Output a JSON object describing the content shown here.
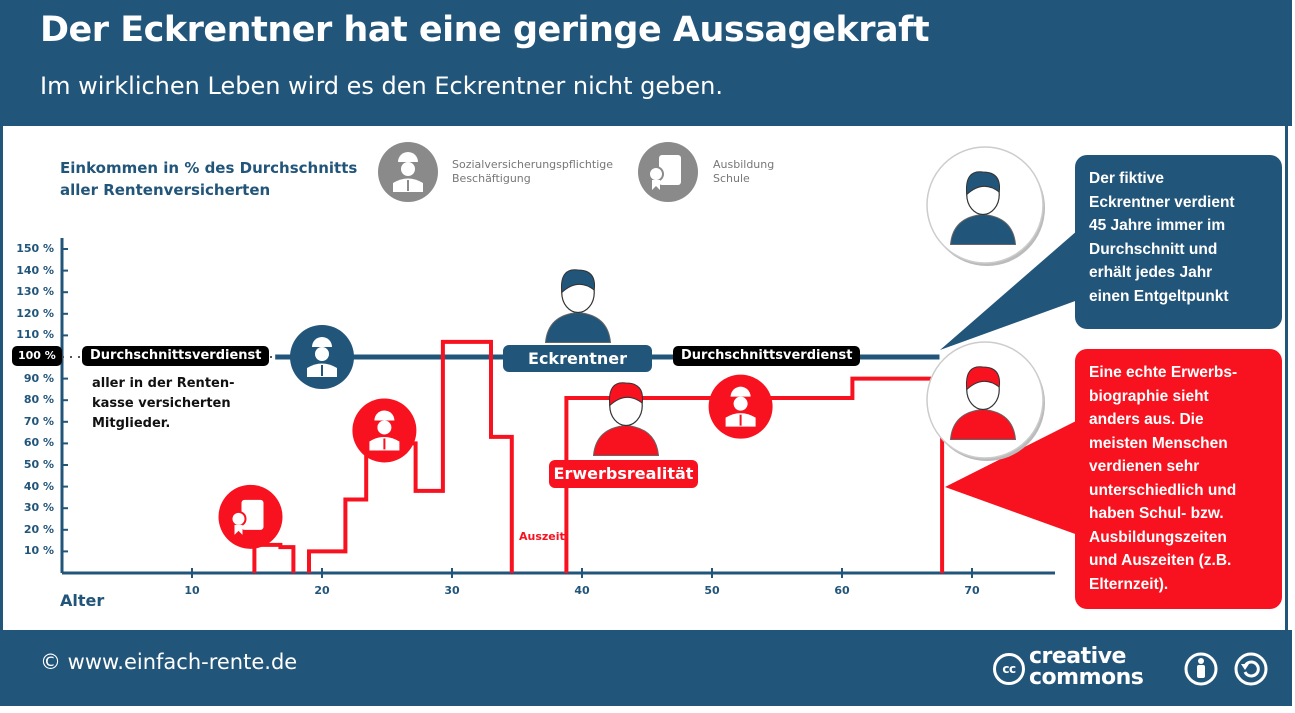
{
  "header": {
    "title": "Der Eckrentner hat eine geringe Aussagekraft",
    "subtitle": "Im wirklichen Leben wird es den Eckrentner nicht geben."
  },
  "legend": {
    "y_title_line1": "Einkommen in % des Durchschnitts",
    "y_title_line2": "aller Rentenversicherten",
    "items": [
      {
        "icon": "worker-icon",
        "line1": "Sozialversicherungspflichtige",
        "line2": "Beschäftigung"
      },
      {
        "icon": "certificate-icon",
        "line1": "Ausbildung",
        "line2": "Schule"
      }
    ]
  },
  "labels": {
    "pct100": "100 %",
    "avg_left": "Durchschnittsverdienst",
    "avg_note_line1": "aller in der Renten-",
    "avg_note_line2": "kasse versicherten",
    "avg_note_line3": "Mitglieder.",
    "eckrentner": "Eckrentner",
    "avg_right": "Durchschnittsverdienst",
    "erwerbsrealitaet": "Erwerbsrealität",
    "auszeit": "Auszeit"
  },
  "bubbles": {
    "blue": [
      "Der fiktive",
      "Eckrentner verdient",
      "45 Jahre immer im",
      "Durchschnitt und",
      "erhält jedes Jahr",
      "einen Entgeltpunkt"
    ],
    "red": [
      "Eine echte Erwerbs-",
      "biographie sieht",
      "anders aus. Die",
      "meisten Menschen",
      "verdienen sehr",
      "unterschiedlich und",
      "haben Schul- bzw.",
      "Ausbildungszeiten",
      "und Auszeiten (z.B.",
      "Elternzeit)."
    ]
  },
  "footer": {
    "copyright": "© www.einfach-rente.de",
    "cc_line1": "creative",
    "cc_line2": "commons",
    "cc_badge": "cc"
  },
  "colors": {
    "blue": "#22557a",
    "red": "#f8121f",
    "grey": "#8a8a8a"
  },
  "chart_data": {
    "type": "line",
    "title": "Der Eckrentner hat eine geringe Aussagekraft",
    "xlabel": "Alter",
    "ylabel": "Einkommen in % des Durchschnitts aller Rentenversicherten",
    "xlim": [
      0,
      76
    ],
    "ylim": [
      0,
      150
    ],
    "x_ticks": [
      10,
      20,
      30,
      40,
      50,
      60,
      70
    ],
    "y_ticks": [
      10,
      20,
      30,
      40,
      50,
      60,
      70,
      80,
      90,
      110,
      120,
      130,
      140,
      150
    ],
    "y_tick_suffix": " %",
    "series": [
      {
        "name": "Eckrentner",
        "color": "#22557a",
        "points": [
          [
            16.4,
            100
          ],
          [
            67.5,
            100
          ]
        ],
        "dotted_from": 0
      },
      {
        "name": "Erwerbsrealität",
        "color": "#f8121f",
        "segments": [
          [
            [
              14.8,
              0
            ],
            [
              14.8,
              13
            ],
            [
              16.8,
              13
            ],
            [
              16.8,
              12
            ],
            [
              17.8,
              12
            ],
            [
              17.8,
              0
            ]
          ],
          [
            [
              19,
              0
            ],
            [
              19,
              10
            ],
            [
              21.8,
              10
            ],
            [
              21.8,
              34
            ],
            [
              23.4,
              34
            ],
            [
              23.4,
              60
            ],
            [
              27.2,
              60
            ],
            [
              27.2,
              38
            ],
            [
              29.3,
              38
            ],
            [
              29.3,
              107
            ],
            [
              33,
              107
            ],
            [
              33,
              63
            ],
            [
              34.6,
              63
            ],
            [
              34.6,
              0
            ]
          ],
          [
            [
              38.8,
              0
            ],
            [
              38.8,
              81
            ],
            [
              60.8,
              81
            ],
            [
              60.8,
              90
            ],
            [
              67.7,
              90
            ],
            [
              67.7,
              0
            ]
          ]
        ]
      }
    ],
    "markers": [
      {
        "type": "worker",
        "series": "Eckrentner",
        "x": 20,
        "y": 100
      },
      {
        "type": "certificate",
        "series": "Erwerbsrealität",
        "x": 14.5,
        "y": 26
      },
      {
        "type": "worker",
        "series": "Erwerbsrealität",
        "x": 24.8,
        "y": 66
      },
      {
        "type": "worker",
        "series": "Erwerbsrealität",
        "x": 52.2,
        "y": 77
      }
    ]
  }
}
